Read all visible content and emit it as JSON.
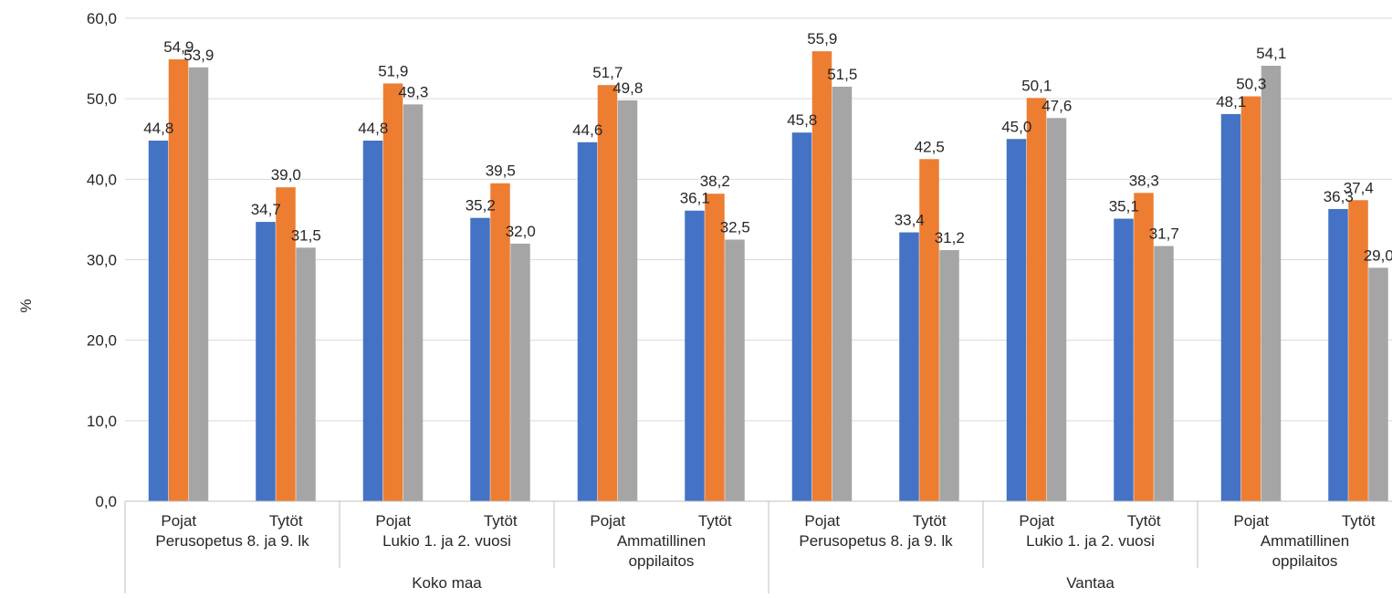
{
  "chart_data": {
    "type": "bar",
    "ylabel": "%",
    "ylim": [
      0,
      60
    ],
    "yticks": [
      "0,0",
      "10,0",
      "20,0",
      "30,0",
      "40,0",
      "50,0",
      "60,0"
    ],
    "grid": true,
    "legend": "none",
    "groups": [
      {
        "label": "Koko maa",
        "schools": [
          {
            "label_lines": [
              "Perusopetus 8. ja 9. lk"
            ],
            "genders": [
              "Pojat",
              "Tytöt"
            ]
          },
          {
            "label_lines": [
              "Lukio 1. ja 2. vuosi"
            ],
            "genders": [
              "Pojat",
              "Tytöt"
            ]
          },
          {
            "label_lines": [
              "Ammatillinen",
              "oppilaitos"
            ],
            "genders": [
              "Pojat",
              "Tytöt"
            ]
          }
        ]
      },
      {
        "label": "Vantaa",
        "schools": [
          {
            "label_lines": [
              "Perusopetus 8. ja 9. lk"
            ],
            "genders": [
              "Pojat",
              "Tytöt"
            ]
          },
          {
            "label_lines": [
              "Lukio 1. ja 2. vuosi"
            ],
            "genders": [
              "Pojat",
              "Tytöt"
            ]
          },
          {
            "label_lines": [
              "Ammatillinen",
              "oppilaitos"
            ],
            "genders": [
              "Pojat",
              "Tytöt"
            ]
          }
        ]
      }
    ],
    "series": [
      {
        "color": "#4472C4",
        "values": [
          44.8,
          34.7,
          44.8,
          35.2,
          44.6,
          36.1,
          45.8,
          33.4,
          45.0,
          35.1,
          48.1,
          36.3
        ],
        "labels": [
          "44,8",
          "34,7",
          "44,8",
          "35,2",
          "44,6",
          "36,1",
          "45,8",
          "33,4",
          "45,0",
          "35,1",
          "48,1",
          "36,3"
        ]
      },
      {
        "color": "#ED7D31",
        "values": [
          54.9,
          39.0,
          51.9,
          39.5,
          51.7,
          38.2,
          55.9,
          42.5,
          50.1,
          38.3,
          50.3,
          37.4
        ],
        "labels": [
          "54,9",
          "39,0",
          "51,9",
          "39,5",
          "51,7",
          "38,2",
          "55,9",
          "42,5",
          "50,1",
          "38,3",
          "50,3",
          "37,4"
        ]
      },
      {
        "color": "#A5A5A5",
        "values": [
          53.9,
          31.5,
          49.3,
          32.0,
          49.8,
          32.5,
          51.5,
          31.2,
          47.6,
          31.7,
          54.1,
          29.0
        ],
        "labels": [
          "53,9",
          "31,5",
          "49,3",
          "32,0",
          "49,8",
          "32,5",
          "51,5",
          "31,2",
          "47,6",
          "31,7",
          "54,1",
          "29,0"
        ]
      }
    ]
  }
}
